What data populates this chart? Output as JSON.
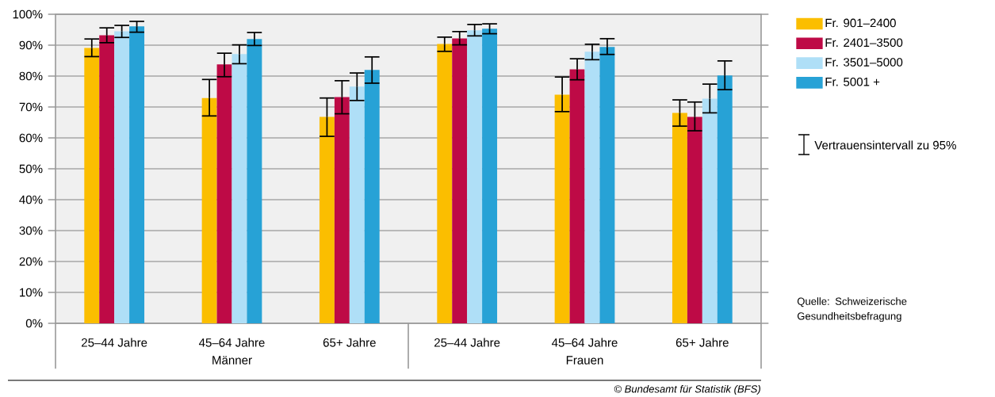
{
  "chart_data": {
    "type": "bar",
    "categories": [
      "25–44 Jahre",
      "45–64 Jahre",
      "65+ Jahre",
      "25–44 Jahre",
      "45–64 Jahre",
      "65+ Jahre"
    ],
    "series": [
      {
        "name": "Fr. 901–2400",
        "color": "#fbbe00",
        "values": [
          89.1,
          72.9,
          66.8,
          90.4,
          74.0,
          68.1
        ],
        "errors": [
          [
            86.3,
            92.0
          ],
          [
            67.1,
            78.9
          ],
          [
            60.5,
            72.9
          ],
          [
            88.0,
            92.6
          ],
          [
            68.5,
            79.7
          ],
          [
            63.8,
            72.3
          ]
        ]
      },
      {
        "name": "Fr. 2401–3500",
        "color": "#be0a46",
        "values": [
          93.2,
          83.8,
          73.2,
          92.2,
          82.2,
          66.8
        ],
        "errors": [
          [
            90.8,
            95.6
          ],
          [
            79.8,
            87.4
          ],
          [
            67.8,
            78.5
          ],
          [
            90.1,
            94.4
          ],
          [
            78.8,
            85.6
          ],
          [
            62.3,
            71.6
          ]
        ]
      },
      {
        "name": "Fr. 3501–5000",
        "color": "#afdff7",
        "values": [
          94.5,
          87.1,
          76.6,
          94.8,
          87.9,
          72.7
        ],
        "errors": [
          [
            92.5,
            96.4
          ],
          [
            84.0,
            90.1
          ],
          [
            72.1,
            81.0
          ],
          [
            93.0,
            96.7
          ],
          [
            85.3,
            90.3
          ],
          [
            68.1,
            77.4
          ]
        ]
      },
      {
        "name": "Fr. 5001 +",
        "color": "#27a2d6",
        "values": [
          96.1,
          92.0,
          82.0,
          95.3,
          89.4,
          80.2
        ],
        "errors": [
          [
            94.2,
            97.7
          ],
          [
            89.9,
            94.1
          ],
          [
            77.7,
            86.2
          ],
          [
            93.7,
            96.9
          ],
          [
            87.0,
            92.1
          ],
          [
            75.6,
            84.9
          ]
        ]
      }
    ],
    "ylim": [
      0,
      100
    ],
    "yticks": [
      {
        "value": 0,
        "label": "0%"
      },
      {
        "value": 10,
        "label": "10%"
      },
      {
        "value": 20,
        "label": "20%"
      },
      {
        "value": 30,
        "label": "30%"
      },
      {
        "value": 40,
        "label": "40%"
      },
      {
        "value": 50,
        "label": "50%"
      },
      {
        "value": 60,
        "label": "60%"
      },
      {
        "value": 70,
        "label": "70%"
      },
      {
        "value": 80,
        "label": "80%"
      },
      {
        "value": 90,
        "label": "90%"
      },
      {
        "value": 100,
        "label": "100%"
      }
    ],
    "grid": "y",
    "legend": "top right",
    "annotations": [
      "Männer",
      "Frauen",
      "Vertrauensintervall zu 95%",
      "Quelle: Schweizerische Gesundheitsbefragung",
      "© Bundesamt für Statistik (BFS)"
    ]
  }
}
